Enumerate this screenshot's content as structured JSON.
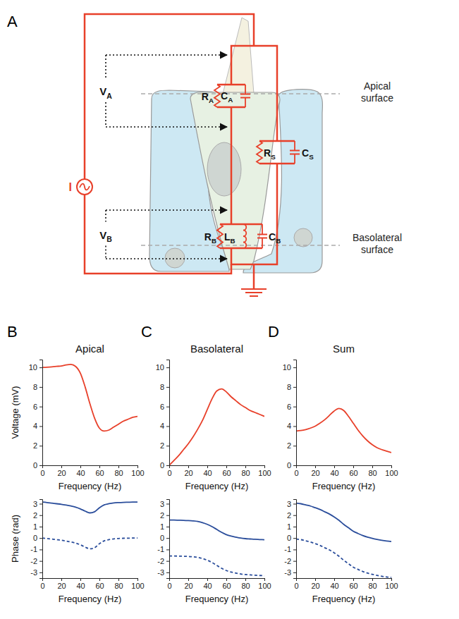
{
  "panel_labels": [
    "A",
    "B",
    "C",
    "D"
  ],
  "diagram": {
    "current_source": "I",
    "voltages": [
      {
        "symbol": "V",
        "subscript": "A"
      },
      {
        "symbol": "V",
        "subscript": "B"
      }
    ],
    "components": [
      {
        "symbol": "R",
        "subscript": "A"
      },
      {
        "symbol": "C",
        "subscript": "A"
      },
      {
        "symbol": "R",
        "subscript": "S"
      },
      {
        "symbol": "C",
        "subscript": "S"
      },
      {
        "symbol": "R",
        "subscript": "B"
      },
      {
        "symbol": "L",
        "subscript": "B"
      },
      {
        "symbol": "C",
        "subscript": "B"
      }
    ],
    "surfaces": [
      "Apical surface",
      "Basolateral surface"
    ]
  },
  "chart_data": [
    {
      "type": "line",
      "title": "Apical",
      "xlabel": "Frequency (Hz)",
      "ylabel": "Voltage (mV)",
      "x": [
        0,
        5,
        10,
        15,
        20,
        25,
        30,
        35,
        40,
        45,
        50,
        55,
        60,
        65,
        70,
        75,
        80,
        85,
        90,
        95,
        100
      ],
      "series": [
        {
          "color": "#e8402a",
          "line_style": "solid",
          "values": [
            10.0,
            10.02,
            10.05,
            10.1,
            10.15,
            10.25,
            10.3,
            10.1,
            9.4,
            8.0,
            6.3,
            4.8,
            3.8,
            3.5,
            3.6,
            3.9,
            4.2,
            4.5,
            4.7,
            4.9,
            5.0
          ]
        }
      ],
      "xlim": [
        0,
        100
      ],
      "ylim": [
        0,
        10.8
      ],
      "xticks": [
        0,
        20,
        40,
        60,
        80,
        100
      ],
      "yticks": [
        0,
        2,
        4,
        6,
        8,
        10
      ],
      "grid": false
    },
    {
      "type": "line",
      "xlabel": "Frequency (Hz)",
      "ylabel": "Phase (rad)",
      "x": [
        0,
        5,
        10,
        15,
        20,
        25,
        30,
        35,
        40,
        45,
        50,
        55,
        60,
        65,
        70,
        75,
        80,
        85,
        90,
        95,
        100
      ],
      "series": [
        {
          "color": "#2a4d9b",
          "line_style": "solid",
          "values": [
            3.14,
            3.1,
            3.05,
            3.0,
            2.95,
            2.88,
            2.8,
            2.7,
            2.55,
            2.35,
            2.2,
            2.3,
            2.65,
            2.9,
            3.0,
            3.07,
            3.1,
            3.12,
            3.13,
            3.14,
            3.14
          ]
        },
        {
          "color": "#2a4d9b",
          "line_style": "dashed",
          "values": [
            0,
            -0.04,
            -0.09,
            -0.14,
            -0.19,
            -0.26,
            -0.34,
            -0.44,
            -0.59,
            -0.79,
            -0.94,
            -0.84,
            -0.49,
            -0.24,
            -0.14,
            -0.07,
            -0.04,
            -0.02,
            -0.01,
            0,
            0
          ]
        }
      ],
      "xlim": [
        0,
        100
      ],
      "ylim": [
        -3.5,
        3.4
      ],
      "xticks": [
        0,
        20,
        40,
        60,
        80,
        100
      ],
      "yticks": [
        -3,
        -2,
        -1,
        0,
        1,
        2,
        3
      ],
      "grid": false
    },
    {
      "type": "line",
      "title": "Basolateral",
      "xlabel": "Frequency (Hz)",
      "x": [
        0,
        5,
        10,
        15,
        20,
        25,
        30,
        35,
        40,
        45,
        50,
        55,
        60,
        65,
        70,
        75,
        80,
        85,
        90,
        95,
        100
      ],
      "series": [
        {
          "color": "#e8402a",
          "line_style": "solid",
          "values": [
            0,
            0.5,
            1.0,
            1.6,
            2.2,
            2.9,
            3.7,
            4.6,
            5.7,
            6.8,
            7.6,
            7.8,
            7.5,
            7.0,
            6.6,
            6.2,
            5.9,
            5.6,
            5.4,
            5.2,
            5.0
          ]
        }
      ],
      "xlim": [
        0,
        100
      ],
      "ylim": [
        0,
        10.8
      ],
      "xticks": [
        0,
        20,
        40,
        60,
        80,
        100
      ],
      "yticks": [
        0,
        2,
        4,
        6,
        8,
        10
      ],
      "grid": false
    },
    {
      "type": "line",
      "xlabel": "Frequency (Hz)",
      "x": [
        0,
        5,
        10,
        15,
        20,
        25,
        30,
        35,
        40,
        45,
        50,
        55,
        60,
        65,
        70,
        75,
        80,
        85,
        90,
        95,
        100
      ],
      "series": [
        {
          "color": "#2a4d9b",
          "line_style": "solid",
          "values": [
            1.57,
            1.57,
            1.56,
            1.55,
            1.53,
            1.5,
            1.45,
            1.35,
            1.2,
            1.0,
            0.75,
            0.5,
            0.3,
            0.17,
            0.08,
            0.0,
            -0.05,
            -0.08,
            -0.11,
            -0.13,
            -0.15
          ]
        },
        {
          "color": "#2a4d9b",
          "line_style": "dashed",
          "values": [
            -1.57,
            -1.57,
            -1.58,
            -1.59,
            -1.61,
            -1.64,
            -1.69,
            -1.79,
            -1.94,
            -2.14,
            -2.39,
            -2.64,
            -2.84,
            -2.97,
            -3.06,
            -3.14,
            -3.19,
            -3.22,
            -3.25,
            -3.27,
            -3.29
          ]
        }
      ],
      "xlim": [
        0,
        100
      ],
      "ylim": [
        -3.5,
        3.4
      ],
      "xticks": [
        0,
        20,
        40,
        60,
        80,
        100
      ],
      "yticks": [
        -3,
        -2,
        -1,
        0,
        1,
        2,
        3
      ],
      "grid": false
    },
    {
      "type": "line",
      "title": "Sum",
      "xlabel": "Frequency (Hz)",
      "x": [
        0,
        5,
        10,
        15,
        20,
        25,
        30,
        35,
        40,
        45,
        50,
        55,
        60,
        65,
        70,
        75,
        80,
        85,
        90,
        95,
        100
      ],
      "series": [
        {
          "color": "#e8402a",
          "line_style": "solid",
          "values": [
            3.5,
            3.55,
            3.65,
            3.8,
            4.0,
            4.3,
            4.65,
            5.1,
            5.55,
            5.8,
            5.6,
            5.0,
            4.3,
            3.6,
            3.0,
            2.5,
            2.1,
            1.8,
            1.6,
            1.45,
            1.3
          ]
        }
      ],
      "xlim": [
        0,
        100
      ],
      "ylim": [
        0,
        10.8
      ],
      "xticks": [
        0,
        20,
        40,
        60,
        80,
        100
      ],
      "yticks": [
        0,
        2,
        4,
        6,
        8,
        10
      ],
      "grid": false
    },
    {
      "type": "line",
      "xlabel": "Frequency (Hz)",
      "x": [
        0,
        5,
        10,
        15,
        20,
        25,
        30,
        35,
        40,
        45,
        50,
        55,
        60,
        65,
        70,
        75,
        80,
        85,
        90,
        95,
        100
      ],
      "series": [
        {
          "color": "#2a4d9b",
          "line_style": "solid",
          "values": [
            3.05,
            3.0,
            2.9,
            2.8,
            2.65,
            2.5,
            2.3,
            2.1,
            1.85,
            1.55,
            1.2,
            0.9,
            0.6,
            0.4,
            0.22,
            0.08,
            -0.03,
            -0.12,
            -0.2,
            -0.26,
            -0.3
          ]
        },
        {
          "color": "#2a4d9b",
          "line_style": "dashed",
          "values": [
            -0.09,
            -0.14,
            -0.24,
            -0.34,
            -0.49,
            -0.64,
            -0.84,
            -1.04,
            -1.29,
            -1.59,
            -1.94,
            -2.24,
            -2.54,
            -2.74,
            -2.92,
            -3.06,
            -3.17,
            -3.26,
            -3.34,
            -3.4,
            -3.44
          ]
        }
      ],
      "xlim": [
        0,
        100
      ],
      "ylim": [
        -3.5,
        3.4
      ],
      "xticks": [
        0,
        20,
        40,
        60,
        80,
        100
      ],
      "yticks": [
        -3,
        -2,
        -1,
        0,
        1,
        2,
        3
      ],
      "grid": false
    }
  ]
}
